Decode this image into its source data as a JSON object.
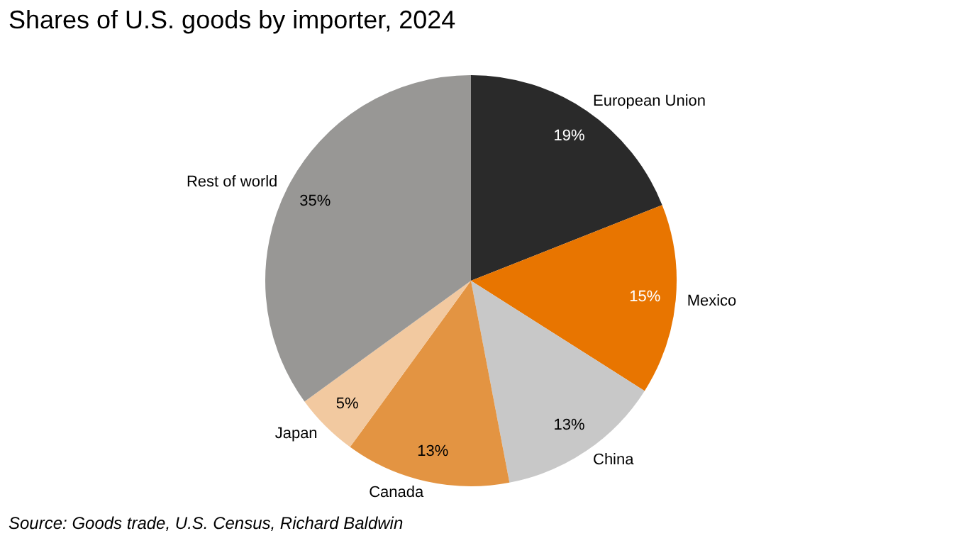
{
  "chart_data": {
    "type": "pie",
    "title": "Shares of U.S. goods by importer, 2024",
    "categories": [
      "European Union",
      "Mexico",
      "China",
      "Canada",
      "Japan",
      "Rest of world"
    ],
    "values": [
      19,
      15,
      13,
      13,
      5,
      35
    ],
    "value_labels": [
      "19%",
      "15%",
      "13%",
      "13%",
      "5%",
      "35%"
    ],
    "colors": [
      "#2a2a2a",
      "#e87500",
      "#c8c8c8",
      "#e39442",
      "#f2c9a0",
      "#989795"
    ],
    "legend": false,
    "annotations": [
      "Source: Goods trade, U.S. Census, Richard Baldwin"
    ]
  }
}
